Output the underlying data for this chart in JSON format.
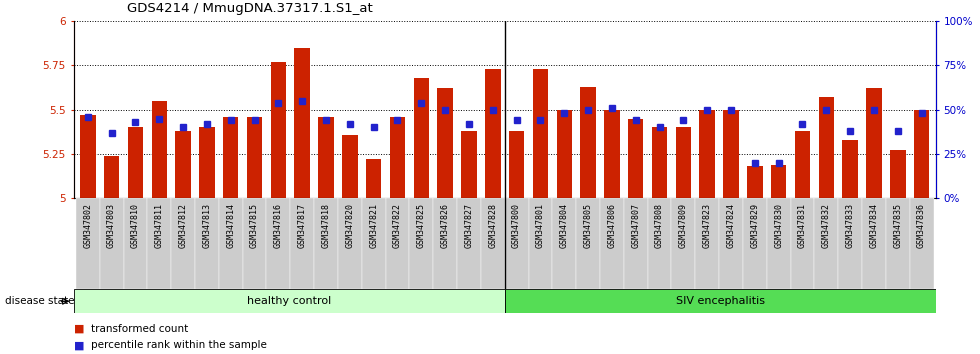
{
  "title": "GDS4214 / MmugDNA.37317.1.S1_at",
  "samples": [
    "GSM347802",
    "GSM347803",
    "GSM347810",
    "GSM347811",
    "GSM347812",
    "GSM347813",
    "GSM347814",
    "GSM347815",
    "GSM347816",
    "GSM347817",
    "GSM347818",
    "GSM347820",
    "GSM347821",
    "GSM347822",
    "GSM347825",
    "GSM347826",
    "GSM347827",
    "GSM347828",
    "GSM347800",
    "GSM347801",
    "GSM347804",
    "GSM347805",
    "GSM347806",
    "GSM347807",
    "GSM347808",
    "GSM347809",
    "GSM347823",
    "GSM347824",
    "GSM347829",
    "GSM347830",
    "GSM347831",
    "GSM347832",
    "GSM347833",
    "GSM347834",
    "GSM347835",
    "GSM347836"
  ],
  "bar_values": [
    5.47,
    5.24,
    5.4,
    5.55,
    5.38,
    5.4,
    5.46,
    5.46,
    5.77,
    5.85,
    5.46,
    5.36,
    5.22,
    5.46,
    5.68,
    5.62,
    5.38,
    5.73,
    5.38,
    5.73,
    5.5,
    5.63,
    5.5,
    5.45,
    5.4,
    5.4,
    5.5,
    5.5,
    5.18,
    5.19,
    5.38,
    5.57,
    5.33,
    5.62,
    5.27,
    5.5
  ],
  "percentile_values": [
    46,
    37,
    43,
    45,
    40,
    42,
    44,
    44,
    54,
    55,
    44,
    42,
    40,
    44,
    54,
    50,
    42,
    50,
    44,
    44,
    48,
    50,
    51,
    44,
    40,
    44,
    50,
    50,
    20,
    20,
    42,
    50,
    38,
    50,
    38,
    48
  ],
  "ylim": [
    5.0,
    6.0
  ],
  "y_ticks": [
    5.0,
    5.25,
    5.5,
    5.75,
    6.0
  ],
  "y_tick_labels": [
    "5",
    "5.25",
    "5.5",
    "5.75",
    "6"
  ],
  "right_ylim": [
    0,
    100
  ],
  "right_yticks": [
    0,
    25,
    50,
    75,
    100
  ],
  "right_yticklabels": [
    "0%",
    "25%",
    "50%",
    "75%",
    "100%"
  ],
  "healthy_count": 18,
  "healthy_label": "healthy control",
  "siv_label": "SIV encephalitis",
  "disease_state_label": "disease state",
  "bar_color": "#CC2200",
  "percentile_color": "#2222CC",
  "healthy_bg": "#CCFFCC",
  "siv_bg": "#55DD55",
  "tick_bg": "#CCCCCC",
  "legend_red_label": "transformed count",
  "legend_blue_label": "percentile rank within the sample"
}
